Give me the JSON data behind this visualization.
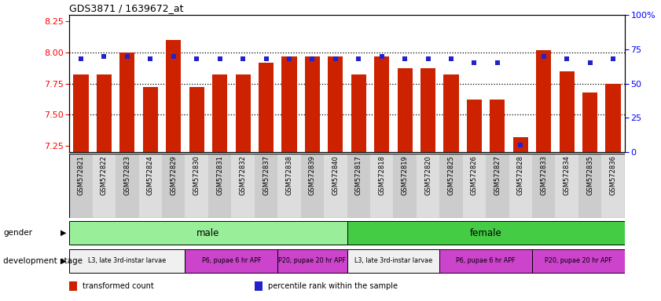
{
  "title": "GDS3871 / 1639672_at",
  "samples": [
    "GSM572821",
    "GSM572822",
    "GSM572823",
    "GSM572824",
    "GSM572829",
    "GSM572830",
    "GSM572831",
    "GSM572832",
    "GSM572837",
    "GSM572838",
    "GSM572839",
    "GSM572840",
    "GSM572817",
    "GSM572818",
    "GSM572819",
    "GSM572820",
    "GSM572825",
    "GSM572826",
    "GSM572827",
    "GSM572828",
    "GSM572833",
    "GSM572834",
    "GSM572835",
    "GSM572836"
  ],
  "bar_values": [
    7.82,
    7.82,
    8.0,
    7.72,
    8.1,
    7.72,
    7.82,
    7.82,
    7.92,
    7.97,
    7.97,
    7.97,
    7.82,
    7.97,
    7.87,
    7.87,
    7.82,
    7.62,
    7.62,
    7.32,
    8.02,
    7.85,
    7.68,
    7.75
  ],
  "percentile_values": [
    68,
    70,
    70,
    68,
    70,
    68,
    68,
    68,
    68,
    68,
    68,
    68,
    68,
    70,
    68,
    68,
    68,
    65,
    65,
    5,
    70,
    68,
    65,
    68
  ],
  "ylim_left": [
    7.2,
    8.3
  ],
  "ylim_right": [
    0,
    100
  ],
  "yticks_left": [
    7.25,
    7.5,
    7.75,
    8.0,
    8.25
  ],
  "yticks_right": [
    0,
    25,
    50,
    75,
    100
  ],
  "bar_color": "#cc2200",
  "scatter_color": "#2222cc",
  "gender_groups": [
    {
      "text": "male",
      "start": 0,
      "end": 12,
      "color": "#99ee99"
    },
    {
      "text": "female",
      "start": 12,
      "end": 24,
      "color": "#44cc44"
    }
  ],
  "stage_groups": [
    {
      "text": "L3, late 3rd-instar larvae",
      "start": 0,
      "end": 5,
      "color": "#f0f0f0"
    },
    {
      "text": "P6, pupae 6 hr APF",
      "start": 5,
      "end": 9,
      "color": "#cc44cc"
    },
    {
      "text": "P20, pupae 20 hr APF",
      "start": 9,
      "end": 12,
      "color": "#cc44cc"
    },
    {
      "text": "L3, late 3rd-instar larvae",
      "start": 12,
      "end": 16,
      "color": "#f0f0f0"
    },
    {
      "text": "P6, pupae 6 hr APF",
      "start": 16,
      "end": 20,
      "color": "#cc44cc"
    },
    {
      "text": "P20, pupae 20 hr APF",
      "start": 20,
      "end": 24,
      "color": "#cc44cc"
    }
  ],
  "n_samples": 24,
  "legend_items": [
    {
      "color": "#cc2200",
      "label": "transformed count"
    },
    {
      "color": "#2222cc",
      "label": "percentile rank within the sample"
    }
  ]
}
